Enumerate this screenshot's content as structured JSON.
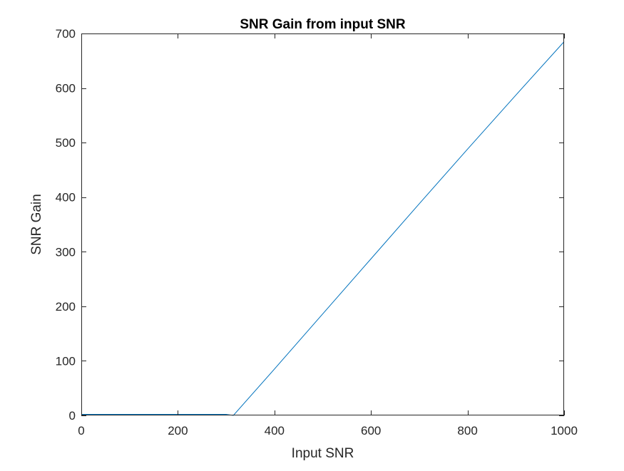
{
  "chart_data": {
    "type": "line",
    "title": "SNR Gain from input SNR",
    "xlabel": "Input SNR",
    "ylabel": "SNR Gain",
    "xlim": [
      0,
      1000
    ],
    "ylim": [
      0,
      700
    ],
    "xticks": [
      "0",
      "200",
      "400",
      "600",
      "800",
      "1000"
    ],
    "yticks": [
      "0",
      "100",
      "200",
      "300",
      "400",
      "500",
      "600",
      "700"
    ],
    "grid": false,
    "series": [
      {
        "color": "#0072BD",
        "x": [
          0,
          100,
          200,
          300,
          315,
          400,
          500,
          600,
          700,
          800,
          900,
          1000
        ],
        "y": [
          2,
          2,
          2,
          2,
          0,
          85,
          186,
          287,
          388,
          488,
          587,
          685
        ]
      }
    ]
  }
}
